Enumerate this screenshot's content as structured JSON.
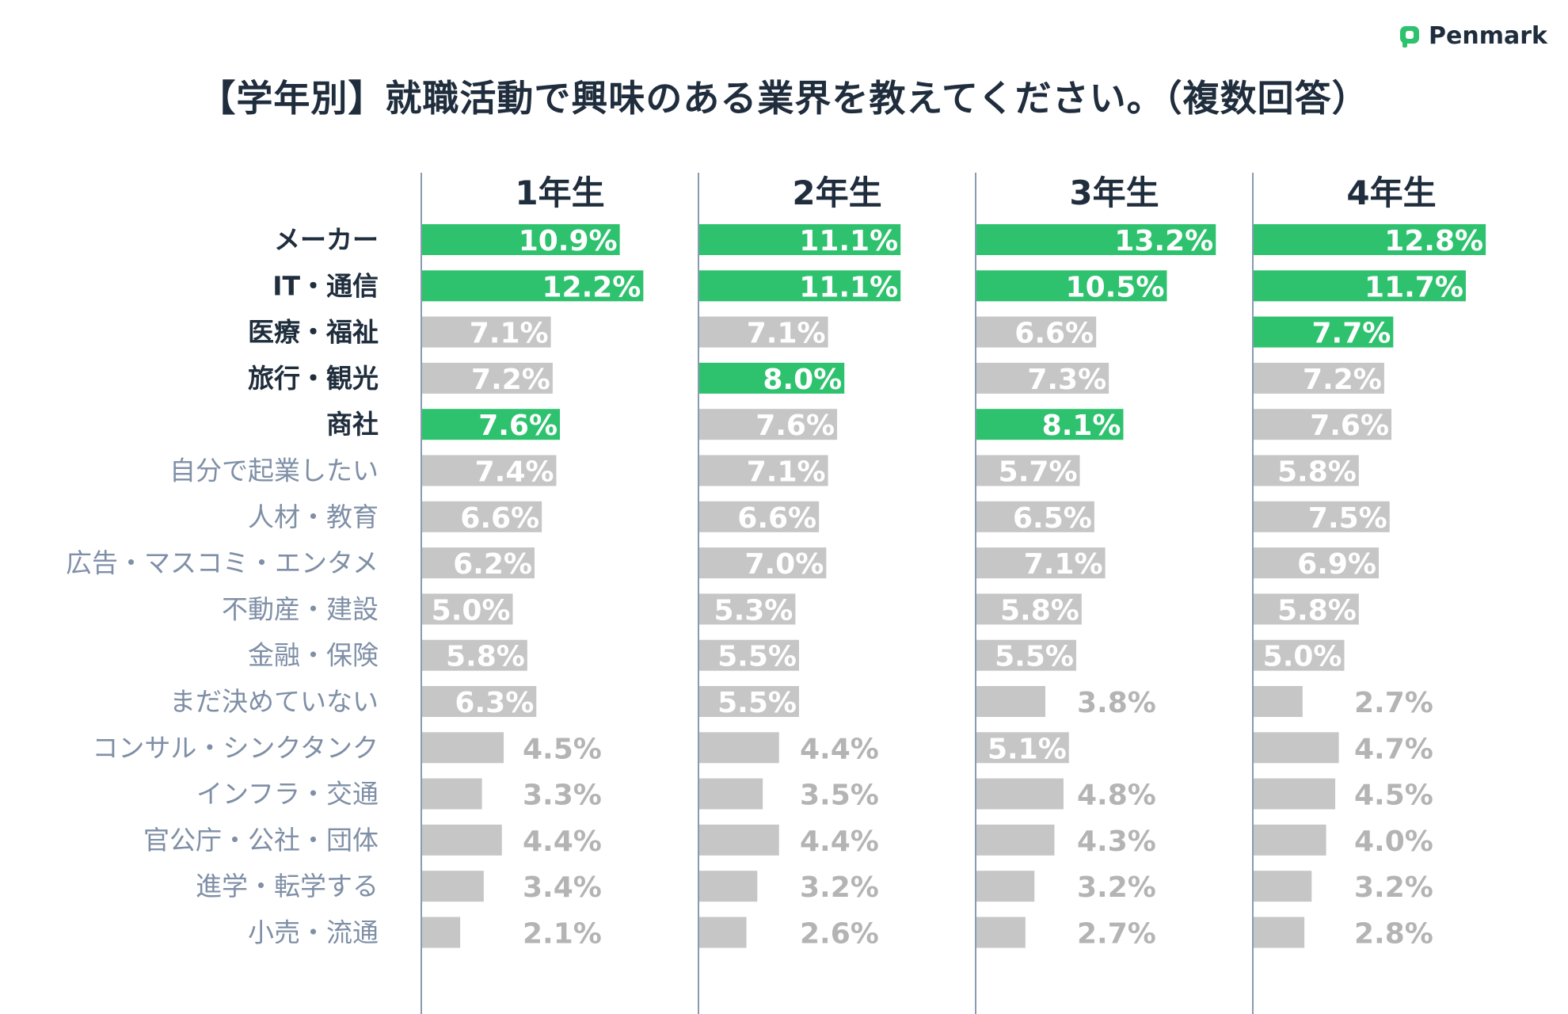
{
  "brand": {
    "name": "Penmark",
    "color": "#2ec26e"
  },
  "colors": {
    "highlight": "#2ec26e",
    "normal": "#c6c6c6",
    "label_bold": "#1f2d3d",
    "label_normal": "#7f8fa6",
    "axis": "#8a9bb0",
    "value_outside": "#b4b4b4"
  },
  "chart_data": {
    "type": "bar",
    "title": "【学年別】就職活動で興味のある業界を教えてください。（複数回答）",
    "categories": [
      "メーカー",
      "IT・通信",
      "医療・福祉",
      "旅行・観光",
      "商社",
      "自分で起業したい",
      "人材・教育",
      "広告・マスコミ・エンタメ",
      "不動産・建設",
      "金融・保険",
      "まだ決めていない",
      "コンサル・シンクタンク",
      "インフラ・交通",
      "官公庁・公社・団体",
      "進学・転学する",
      "小売・流通"
    ],
    "bold_categories": [
      0,
      1,
      2,
      3,
      4
    ],
    "series": [
      {
        "name": "1年生",
        "values": [
          10.9,
          12.2,
          7.1,
          7.2,
          7.6,
          7.4,
          6.6,
          6.2,
          5.0,
          5.8,
          6.3,
          4.5,
          3.3,
          4.4,
          3.4,
          2.1
        ],
        "labels": [
          "10.9%",
          "12.2%",
          "7.1%",
          "7.2%",
          "7.6%",
          "7.4%",
          "6.6%",
          "6.2%",
          "5.0%",
          "5.8%",
          "6.3%",
          "4.5%",
          "3.3%",
          "4.4%",
          "3.4%",
          "2.1%"
        ],
        "highlight": [
          0,
          1,
          4
        ]
      },
      {
        "name": "2年生",
        "values": [
          11.1,
          11.1,
          7.1,
          8.0,
          7.6,
          7.1,
          6.6,
          7.0,
          5.3,
          5.5,
          5.5,
          4.4,
          3.5,
          4.4,
          3.2,
          2.6
        ],
        "labels": [
          "11.1%",
          "11.1%",
          "7.1%",
          "8.0%",
          "7.6%",
          "7.1%",
          "6.6%",
          "7.0%",
          "5.3%",
          "5.5%",
          "5.5%",
          "4.4%",
          "3.5%",
          "4.4%",
          "3.2%",
          "2.6%"
        ],
        "highlight": [
          0,
          1,
          3
        ]
      },
      {
        "name": "3年生",
        "values": [
          13.2,
          10.5,
          6.6,
          7.3,
          8.1,
          5.7,
          6.5,
          7.1,
          5.8,
          5.5,
          3.8,
          5.1,
          4.8,
          4.3,
          3.2,
          2.7
        ],
        "labels": [
          "13.2%",
          "10.5%",
          "6.6%",
          "7.3%",
          "8.1%",
          "5.7%",
          "6.5%",
          "7.1%",
          "5.8%",
          "5.5%",
          "3.8%",
          "5.1%",
          "4.8%",
          "4.3%",
          "3.2%",
          "2.7%"
        ],
        "highlight": [
          0,
          1,
          4
        ]
      },
      {
        "name": "4年生",
        "values": [
          12.8,
          11.7,
          7.7,
          7.2,
          7.6,
          5.8,
          7.5,
          6.9,
          5.8,
          5.0,
          2.7,
          4.7,
          4.5,
          4.0,
          3.2,
          2.8
        ],
        "labels": [
          "12.8%",
          "11.7%",
          "7.7%",
          "7.2%",
          "7.6%",
          "5.8%",
          "7.5%",
          "6.9%",
          "5.8%",
          "5.0%",
          "2.7%",
          "4.7%",
          "4.5%",
          "4.0%",
          "3.2%",
          "2.8%"
        ],
        "highlight": [
          0,
          1,
          2
        ]
      }
    ],
    "inside_label_threshold": 5.0,
    "xlim": [
      0,
      14
    ]
  }
}
